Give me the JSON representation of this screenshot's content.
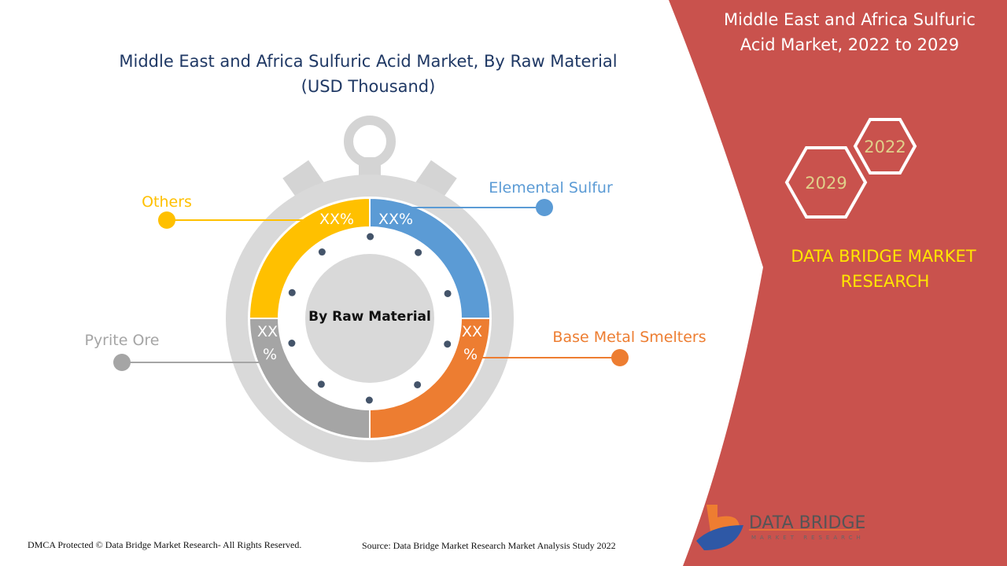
{
  "title_lines": [
    "Middle East and Africa Sulfuric Acid Market, By Raw Material",
    "(USD Thousand)"
  ],
  "center_label": "By Raw Material",
  "panel": {
    "title_lines": [
      "Middle East and Africa Sulfuric",
      "Acid Market, 2022 to 2029"
    ],
    "year_start": "2022",
    "year_end": "2029",
    "brand_lines": [
      "DATA BRIDGE MARKET",
      "RESEARCH"
    ],
    "logo_text": "DATA BRIDGE",
    "logo_sub": "MARKET RESEARCH",
    "panel_color": "#c9524d",
    "brand_color": "#ffe600"
  },
  "footer": {
    "copyright": "DMCA Protected © Data Bridge Market Research- All Rights Reserved.",
    "source": "Source: Data Bridge Market Research Market Analysis Study 2022"
  },
  "chart_data": {
    "type": "pie",
    "title": "Middle East and Africa Sulfuric Acid Market, By Raw Material (USD Thousand)",
    "categories": [
      "Elemental Sulfur",
      "Base Metal Smelters",
      "Pyrite Ore",
      "Others"
    ],
    "value_labels": [
      "XX%",
      "XX %",
      "XX %",
      "XX%"
    ],
    "colors": [
      "#5b9bd5",
      "#ed7d31",
      "#a5a5a5",
      "#ffc000"
    ]
  }
}
